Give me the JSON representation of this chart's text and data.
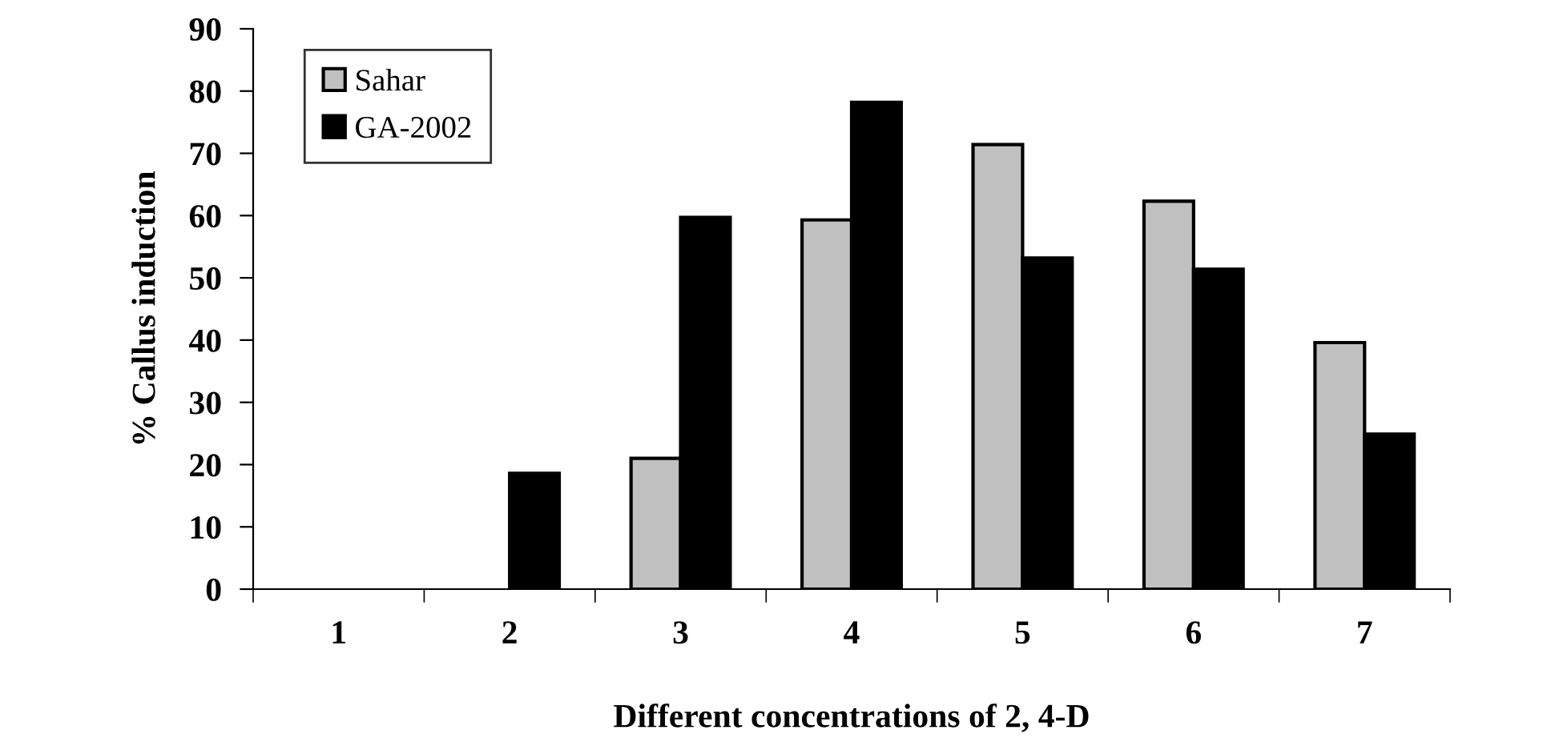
{
  "chart_data": {
    "type": "bar",
    "xlabel": "Different concentrations of 2, 4-D",
    "ylabel": "% Callus induction",
    "categories": [
      "1",
      "2",
      "3",
      "4",
      "5",
      "6",
      "7"
    ],
    "series": [
      {
        "name": "Sahar",
        "color": "#c0c0c0",
        "values": [
          null,
          null,
          21.0,
          59.3,
          71.4,
          62.3,
          39.6
        ]
      },
      {
        "name": "GA-2002",
        "color": "#000000",
        "values": [
          null,
          18.6,
          59.7,
          78.2,
          53.2,
          51.4,
          24.9
        ]
      }
    ],
    "ylim": [
      0,
      90
    ],
    "yticks": [
      0,
      10,
      20,
      30,
      40,
      50,
      60,
      70,
      80,
      90
    ],
    "grid": false,
    "legend": "top left"
  }
}
